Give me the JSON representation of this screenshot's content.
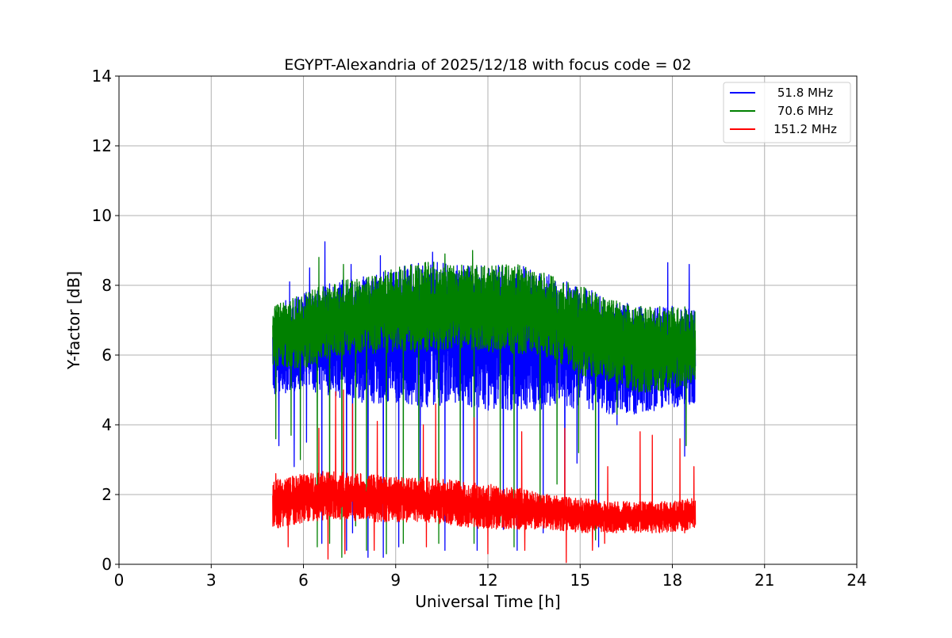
{
  "chart_data": {
    "type": "line",
    "title": "EGYPT-Alexandria of 2025/12/18 with focus code = 02",
    "xlabel": "Universal Time [h]",
    "ylabel": "Y-factor [dB]",
    "xlim": [
      0,
      24
    ],
    "ylim": [
      0,
      14
    ],
    "xticks": [
      0,
      3,
      6,
      9,
      12,
      15,
      18,
      21,
      24
    ],
    "yticks": [
      0,
      2,
      4,
      6,
      8,
      10,
      12,
      14
    ],
    "grid": true,
    "legend_position": "top-right",
    "time_range": [
      5.0,
      18.75
    ],
    "series": [
      {
        "name": "51.8 MHz",
        "color": "#0000ff",
        "envelope": {
          "x": [
            5.0,
            6.0,
            7.0,
            8.0,
            9.0,
            10.0,
            11.0,
            12.0,
            13.0,
            14.0,
            15.0,
            16.0,
            17.0,
            18.0,
            18.75
          ],
          "lower": [
            4.8,
            5.0,
            4.8,
            4.6,
            4.6,
            4.5,
            4.6,
            4.4,
            4.4,
            4.4,
            4.5,
            4.3,
            4.3,
            4.5,
            4.6
          ],
          "upper": [
            7.4,
            7.8,
            8.1,
            8.3,
            8.5,
            8.7,
            8.6,
            8.6,
            8.6,
            8.3,
            8.0,
            7.6,
            7.4,
            7.4,
            7.4
          ]
        },
        "spikes": [
          [
            6.7,
            9.25
          ],
          [
            7.55,
            8.6
          ],
          [
            8.5,
            8.85
          ],
          [
            10.2,
            8.95
          ],
          [
            17.85,
            8.65
          ],
          [
            18.55,
            8.6
          ],
          [
            5.55,
            8.1
          ],
          [
            6.2,
            8.5
          ]
        ],
        "dips": [
          [
            5.2,
            3.4
          ],
          [
            5.7,
            2.8
          ],
          [
            6.1,
            3.5
          ],
          [
            6.6,
            0.6
          ],
          [
            7.4,
            0.4
          ],
          [
            7.6,
            0.9
          ],
          [
            8.1,
            0.2
          ],
          [
            8.6,
            0.2
          ],
          [
            9.1,
            0.5
          ],
          [
            9.8,
            1.5
          ],
          [
            10.6,
            0.4
          ],
          [
            11.2,
            1.9
          ],
          [
            11.65,
            0.4
          ],
          [
            12.5,
            1.0
          ],
          [
            12.95,
            0.4
          ],
          [
            13.8,
            0.9
          ],
          [
            14.5,
            1.7
          ],
          [
            14.9,
            2.9
          ],
          [
            15.6,
            0.5
          ],
          [
            16.2,
            4.0
          ],
          [
            18.4,
            3.1
          ]
        ]
      },
      {
        "name": "70.6 MHz",
        "color": "#008000",
        "envelope": {
          "x": [
            5.0,
            6.0,
            7.0,
            8.0,
            9.0,
            10.0,
            11.0,
            12.0,
            13.0,
            14.0,
            14.3,
            15.0,
            16.0,
            17.0,
            18.0,
            18.75
          ],
          "lower": [
            5.7,
            5.6,
            6.0,
            6.0,
            6.1,
            6.1,
            6.2,
            6.1,
            6.0,
            5.9,
            5.8,
            5.4,
            5.2,
            4.9,
            5.0,
            5.1
          ],
          "upper": [
            7.4,
            7.8,
            8.1,
            8.3,
            8.5,
            8.7,
            8.6,
            8.6,
            8.6,
            8.3,
            8.2,
            8.0,
            7.6,
            7.4,
            7.4,
            7.4
          ]
        },
        "spikes": [
          [
            6.5,
            8.8
          ],
          [
            7.3,
            8.6
          ],
          [
            11.5,
            9.0
          ],
          [
            10.6,
            8.9
          ]
        ],
        "dips": [
          [
            5.1,
            3.6
          ],
          [
            5.6,
            3.7
          ],
          [
            5.9,
            3.0
          ],
          [
            6.45,
            0.5
          ],
          [
            6.85,
            0.6
          ],
          [
            7.25,
            0.2
          ],
          [
            7.7,
            1.1
          ],
          [
            8.05,
            0.4
          ],
          [
            8.7,
            0.3
          ],
          [
            9.25,
            0.6
          ],
          [
            9.75,
            2.1
          ],
          [
            10.4,
            0.6
          ],
          [
            11.1,
            2.2
          ],
          [
            11.55,
            0.6
          ],
          [
            12.4,
            1.2
          ],
          [
            12.85,
            0.5
          ],
          [
            13.7,
            1.2
          ],
          [
            14.25,
            2.3
          ],
          [
            14.95,
            3.2
          ],
          [
            15.5,
            0.7
          ],
          [
            16.2,
            4.3
          ],
          [
            18.45,
            3.4
          ]
        ]
      },
      {
        "name": "151.2 MHz",
        "color": "#ff0000",
        "envelope": {
          "x": [
            5.0,
            6.0,
            7.0,
            8.0,
            9.0,
            10.0,
            11.0,
            12.0,
            13.0,
            14.0,
            15.0,
            16.0,
            17.0,
            18.0,
            18.75
          ],
          "lower": [
            1.0,
            1.2,
            1.3,
            1.2,
            1.2,
            1.2,
            1.1,
            1.0,
            1.0,
            1.0,
            0.9,
            0.9,
            0.9,
            0.9,
            1.0
          ],
          "upper": [
            2.4,
            2.6,
            2.7,
            2.6,
            2.5,
            2.5,
            2.4,
            2.3,
            2.2,
            2.0,
            1.9,
            1.8,
            1.8,
            1.8,
            1.9
          ]
        },
        "spikes": [
          [
            5.1,
            2.6
          ],
          [
            6.5,
            3.9
          ],
          [
            7.05,
            4.95
          ],
          [
            7.3,
            5.0
          ],
          [
            7.6,
            4.6
          ],
          [
            8.4,
            4.1
          ],
          [
            9.9,
            4.0
          ],
          [
            10.3,
            4.6
          ],
          [
            11.55,
            4.2
          ],
          [
            12.0,
            4.6
          ],
          [
            13.1,
            3.8
          ],
          [
            14.5,
            3.9
          ],
          [
            15.9,
            2.8
          ],
          [
            16.95,
            3.8
          ],
          [
            17.35,
            3.7
          ],
          [
            18.25,
            3.6
          ],
          [
            18.7,
            2.8
          ]
        ],
        "dips": [
          [
            5.5,
            0.5
          ],
          [
            6.8,
            0.15
          ],
          [
            7.35,
            0.3
          ],
          [
            8.3,
            0.4
          ],
          [
            10.0,
            0.5
          ],
          [
            12.0,
            0.3
          ],
          [
            13.2,
            0.4
          ],
          [
            14.55,
            0.05
          ],
          [
            15.4,
            0.4
          ],
          [
            15.8,
            0.6
          ],
          [
            18.4,
            0.9
          ]
        ]
      }
    ]
  }
}
